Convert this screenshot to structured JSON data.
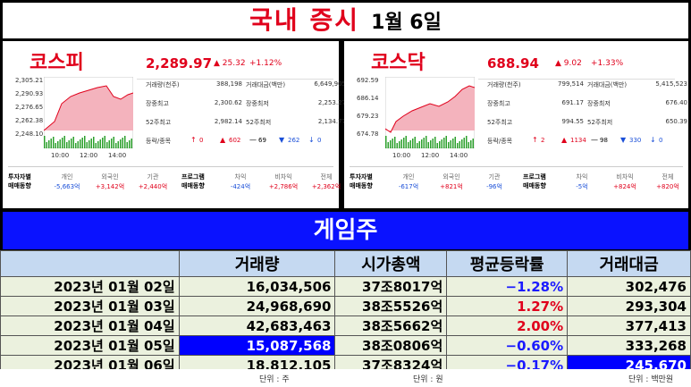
{
  "header": {
    "title": "국내 증시",
    "date": "1월 6일"
  },
  "markets": [
    {
      "name": "코스피",
      "index": "2,289.97",
      "change": "▲ 25.32",
      "change_pct": "+1.12%",
      "chart": {
        "yticks": [
          "2,305.21",
          "2,290.93",
          "2,276.65",
          "2,262.38",
          "2,248.10"
        ],
        "xticks": [
          "10:00",
          "12:00",
          "14:00"
        ]
      },
      "stats": [
        {
          "label": "거래량(천주)",
          "value": "388,198"
        },
        {
          "label": "거래대금(백만)",
          "value": "6,649,905"
        },
        {
          "label": "장중최고",
          "value": "2,300.62"
        },
        {
          "label": "장중최저",
          "value": "2,253.27"
        },
        {
          "label": "52주최고",
          "value": "2,982.14"
        },
        {
          "label": "52주최저",
          "value": "2,134.77"
        }
      ],
      "breadth_label": "등락/종목",
      "breadth": [
        {
          "symbol": "↑",
          "value": "0"
        },
        {
          "symbol": "▲",
          "value": "602"
        },
        {
          "symbol": "—",
          "value": "69"
        },
        {
          "symbol": "▼",
          "value": "262"
        },
        {
          "symbol": "↓",
          "value": "0"
        }
      ],
      "investor": {
        "label": "투자자별\n매매동향",
        "items": [
          {
            "label": "개인",
            "value": "-5,663억"
          },
          {
            "label": "외국인",
            "value": "+3,142억"
          },
          {
            "label": "기관",
            "value": "+2,440억"
          }
        ]
      },
      "program": {
        "label": "프로그램\n매매동향",
        "items": [
          {
            "label": "차익",
            "value": "-424억"
          },
          {
            "label": "비차익",
            "value": "+2,786억"
          },
          {
            "label": "전체",
            "value": "+2,362억"
          }
        ]
      }
    },
    {
      "name": "코스닥",
      "index": "688.94",
      "change": "▲ 9.02",
      "change_pct": "+1.33%",
      "chart": {
        "yticks": [
          "692.59",
          "686.14",
          "679.23",
          "674.78"
        ],
        "xticks": [
          "10:00",
          "12:00",
          "14:00"
        ]
      },
      "stats": [
        {
          "label": "거래량(천주)",
          "value": "799,514"
        },
        {
          "label": "거래대금(백만)",
          "value": "5,415,523"
        },
        {
          "label": "장중최고",
          "value": "691.17"
        },
        {
          "label": "장중최저",
          "value": "676.40"
        },
        {
          "label": "52주최고",
          "value": "994.55"
        },
        {
          "label": "52주최저",
          "value": "650.39"
        }
      ],
      "breadth_label": "등락/종목",
      "breadth": [
        {
          "symbol": "↑",
          "value": "2"
        },
        {
          "symbol": "▲",
          "value": "1134"
        },
        {
          "symbol": "—",
          "value": "98"
        },
        {
          "symbol": "▼",
          "value": "330"
        },
        {
          "symbol": "↓",
          "value": "0"
        }
      ],
      "investor": {
        "label": "투자자별\n매매동향",
        "items": [
          {
            "label": "개인",
            "value": "-617억"
          },
          {
            "label": "외국인",
            "value": "+821억"
          },
          {
            "label": "기관",
            "value": "-96억"
          }
        ]
      },
      "program": {
        "label": "프로그램\n매매동향",
        "items": [
          {
            "label": "차익",
            "value": "-5억"
          },
          {
            "label": "비차익",
            "value": "+824억"
          },
          {
            "label": "전체",
            "value": "+820억"
          }
        ]
      }
    }
  ],
  "table": {
    "title": "게임주",
    "columns": [
      "거래량",
      "시가총액",
      "평균등락률",
      "거래대금"
    ],
    "rows": [
      [
        "2023년 01월 02일",
        "16,034,506",
        "37조8017억",
        "−1.28%",
        "302,476"
      ],
      [
        "2023년 01월 03일",
        "24,968,690",
        "38조5526억",
        "1.27%",
        "293,304"
      ],
      [
        "2023년 01월 04일",
        "42,683,463",
        "38조5662억",
        "2.00%",
        "377,413"
      ],
      [
        "2023년 01월 05일",
        "15,087,568",
        "38조0806억",
        "−0.60%",
        "333,268"
      ],
      [
        "2023년 01월 06일",
        "18,812,105",
        "37조8324억",
        "−0.17%",
        "245,670"
      ]
    ],
    "highlighted_cells": [
      [
        3,
        1
      ],
      [
        4,
        4
      ]
    ],
    "highlight_color": "#0000ff",
    "units": [
      "단위 : 주",
      "단위 : 원",
      "단위 : 백만원"
    ]
  }
}
